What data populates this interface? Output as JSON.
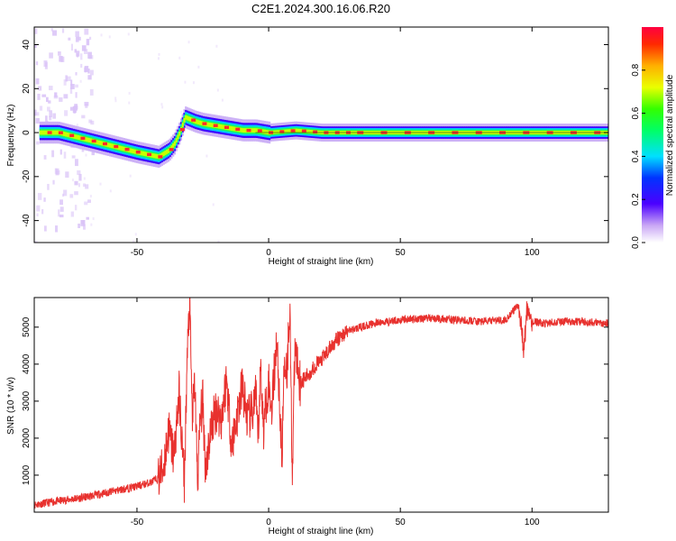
{
  "title": "C2E1.2024.300.16.06.R20",
  "chart_data": [
    {
      "type": "heatmap",
      "xlabel": "Height of straight line (km)",
      "ylabel": "Frequency (Hz)",
      "xlim": [
        -89,
        129
      ],
      "ylim": [
        -50,
        48
      ],
      "xticks": [
        -50,
        0,
        50,
        100
      ],
      "yticks": [
        -40,
        -20,
        0,
        20,
        40
      ],
      "colorbar": {
        "label": "Normalized spectral amplitude",
        "range": [
          0,
          1
        ],
        "ticks": [
          0.0,
          0.2,
          0.4,
          0.6,
          0.8
        ]
      },
      "ridge_frequency": {
        "x": [
          -89,
          -80,
          -70,
          -60,
          -50,
          -42,
          -38,
          -36,
          -34,
          -32,
          -30,
          -28,
          -25,
          -20,
          -15,
          -10,
          -5,
          0,
          10,
          20,
          40,
          60,
          80,
          100,
          129
        ],
        "y": [
          0,
          0,
          -3,
          -6,
          -9,
          -11,
          -8,
          -5,
          0,
          7,
          6,
          5,
          4,
          3,
          2,
          1,
          1,
          0,
          1,
          0,
          0,
          0,
          0,
          0,
          0
        ]
      }
    },
    {
      "type": "line",
      "xlabel": "Height of straight line (km)",
      "ylabel": "SNR (10 * v/v)",
      "xlim": [
        -89,
        129
      ],
      "ylim": [
        0,
        5800
      ],
      "xticks": [
        -50,
        0,
        50,
        100
      ],
      "yticks": [
        1000,
        2000,
        3000,
        4000,
        5000
      ],
      "color": "#e8312e",
      "series": [
        {
          "x": [
            -89,
            -80,
            -70,
            -60,
            -50,
            -45,
            -42,
            -40,
            -38,
            -36,
            -34,
            -32,
            -31,
            -30,
            -29,
            -28,
            -27,
            -26,
            -25,
            -24,
            -22,
            -20,
            -18,
            -16,
            -14,
            -12,
            -10,
            -8,
            -6,
            -5,
            -4,
            -3,
            -2,
            -1,
            0,
            1,
            2,
            3,
            4,
            5,
            6,
            7,
            8,
            9,
            10,
            12,
            15,
            18,
            20,
            25,
            30,
            40,
            50,
            60,
            70,
            80,
            90,
            95,
            97,
            98,
            99,
            100,
            105,
            110,
            120,
            129
          ],
          "y": [
            200,
            300,
            400,
            550,
            700,
            800,
            900,
            1200,
            2200,
            1500,
            3200,
            800,
            4000,
            5700,
            2500,
            3500,
            800,
            2500,
            3000,
            1200,
            2200,
            2800,
            2500,
            3600,
            1800,
            2600,
            3400,
            2500,
            2700,
            3200,
            2000,
            4000,
            2200,
            3000,
            3500,
            2800,
            3600,
            4700,
            3300,
            1400,
            4200,
            3800,
            5700,
            1000,
            4500,
            3500,
            3700,
            4000,
            4100,
            4600,
            4900,
            5100,
            5200,
            5250,
            5200,
            5150,
            5200,
            5600,
            4300,
            5500,
            5200,
            5150,
            5100,
            5150,
            5150,
            5100
          ]
        }
      ]
    }
  ]
}
